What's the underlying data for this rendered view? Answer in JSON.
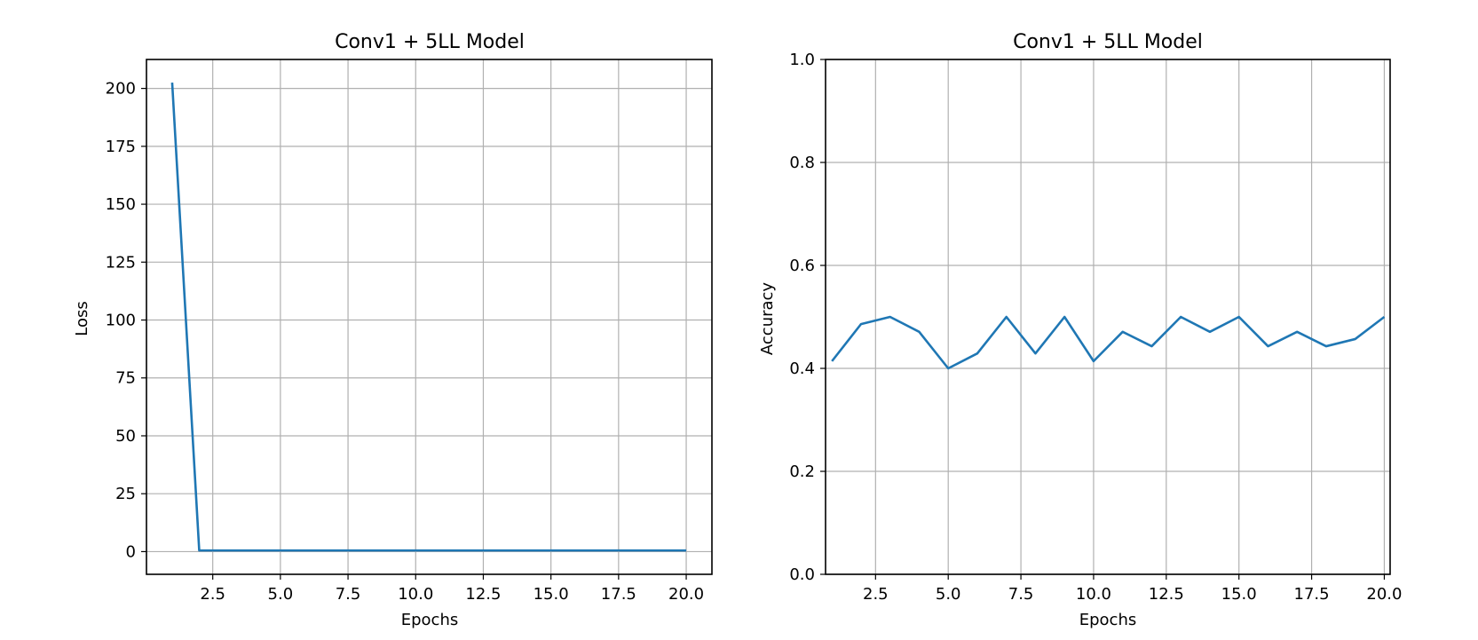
{
  "chart_data": [
    {
      "type": "line",
      "title": "Conv1 + 5LL Model",
      "xlabel": "Epochs",
      "ylabel": "Loss",
      "xlim": [
        0.05,
        20.95
      ],
      "ylim": [
        -9.8,
        212.5
      ],
      "xticks": [
        2.5,
        5.0,
        7.5,
        10.0,
        12.5,
        15.0,
        17.5,
        20.0
      ],
      "xtick_labels": [
        "2.5",
        "5.0",
        "7.5",
        "10.0",
        "12.5",
        "15.0",
        "17.5",
        "20.0"
      ],
      "yticks": [
        0,
        25,
        50,
        75,
        100,
        125,
        150,
        175,
        200
      ],
      "ytick_labels": [
        "0",
        "25",
        "50",
        "75",
        "100",
        "125",
        "150",
        "175",
        "200"
      ],
      "grid": true,
      "line_color": "#1f77b4",
      "series": [
        {
          "x": [
            1,
            2,
            3,
            4,
            5,
            6,
            7,
            8,
            9,
            10,
            11,
            12,
            13,
            14,
            15,
            16,
            17,
            18,
            19,
            20
          ],
          "values": [
            202.5,
            0.5,
            0.5,
            0.5,
            0.5,
            0.5,
            0.5,
            0.5,
            0.5,
            0.5,
            0.5,
            0.5,
            0.5,
            0.5,
            0.5,
            0.5,
            0.5,
            0.5,
            0.5,
            0.5
          ]
        }
      ]
    },
    {
      "type": "line",
      "title": "Conv1 + 5LL Model",
      "xlabel": "Epochs",
      "ylabel": "Accuracy",
      "xlim": [
        0.78,
        20.2
      ],
      "ylim": [
        0.0,
        1.0
      ],
      "xticks": [
        2.5,
        5.0,
        7.5,
        10.0,
        12.5,
        15.0,
        17.5,
        20.0
      ],
      "xtick_labels": [
        "2.5",
        "5.0",
        "7.5",
        "10.0",
        "12.5",
        "15.0",
        "17.5",
        "20.0"
      ],
      "yticks": [
        0.0,
        0.2,
        0.4,
        0.6,
        0.8,
        1.0
      ],
      "ytick_labels": [
        "0.0",
        "0.2",
        "0.4",
        "0.6",
        "0.8",
        "1.0"
      ],
      "grid": true,
      "line_color": "#1f77b4",
      "series": [
        {
          "x": [
            1,
            2,
            3,
            4,
            5,
            6,
            7,
            8,
            9,
            10,
            11,
            12,
            13,
            14,
            15,
            16,
            17,
            18,
            19,
            20
          ],
          "values": [
            0.414,
            0.486,
            0.5,
            0.471,
            0.4,
            0.429,
            0.5,
            0.429,
            0.5,
            0.414,
            0.471,
            0.443,
            0.5,
            0.471,
            0.5,
            0.443,
            0.471,
            0.443,
            0.457,
            0.5
          ]
        }
      ]
    }
  ]
}
